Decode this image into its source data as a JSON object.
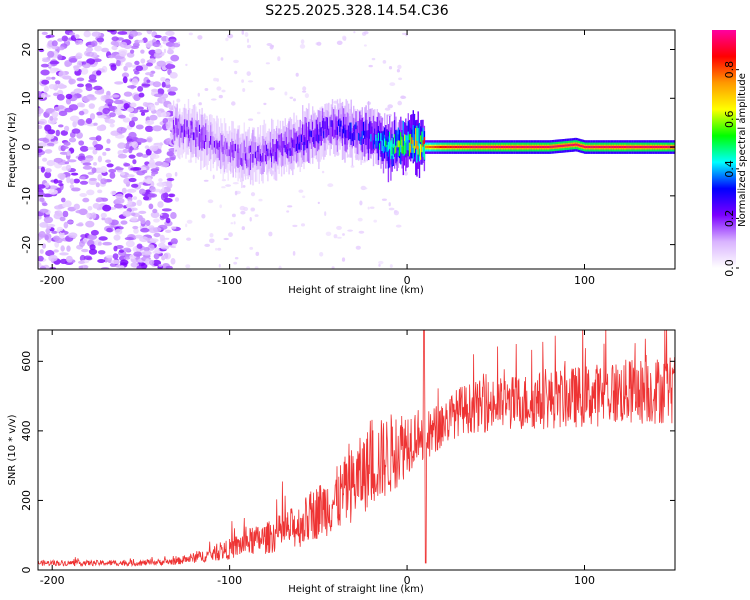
{
  "title": "S225.2025.328.14.54.C36",
  "chart_data": [
    {
      "type": "heatmap",
      "id": "spectrogram",
      "xlabel": "Height of straight line (km)",
      "ylabel": "Frequency (Hz)",
      "xlim": [
        -208,
        151
      ],
      "ylim": [
        -25,
        24
      ],
      "xticks": [
        -200,
        -100,
        0,
        100
      ],
      "yticks": [
        -20,
        -10,
        0,
        10,
        20
      ],
      "colorbar": {
        "label": "Normalized spectral amplitude",
        "range": [
          0,
          1
        ],
        "ticks": [
          "0.0",
          "0.2",
          "0.4",
          "0.6",
          "0.8"
        ],
        "colors": [
          "#ffffff",
          "#d9b3ff",
          "#7b00ff",
          "#0000ff",
          "#00ffff",
          "#00ff00",
          "#ffff00",
          "#ff9900",
          "#ff0000",
          "#ff00a0"
        ]
      },
      "signal_trace": {
        "description_points_x_km": [
          -130,
          -120,
          -110,
          -100,
          -90,
          -80,
          -70,
          -60,
          -50,
          -40,
          -30,
          -20,
          -10,
          0,
          10,
          20,
          40,
          60,
          80,
          95,
          100,
          151
        ],
        "frequency_hz": [
          4,
          3,
          1,
          -1,
          -2,
          -1,
          0,
          1,
          3,
          4,
          3,
          2,
          0,
          1,
          0,
          0,
          0,
          0,
          0,
          0.5,
          0,
          0
        ],
        "peak_amplitude": [
          0.2,
          0.2,
          0.18,
          0.18,
          0.2,
          0.2,
          0.22,
          0.25,
          0.25,
          0.25,
          0.3,
          0.35,
          0.5,
          0.6,
          0.8,
          0.9,
          0.95,
          0.95,
          0.95,
          0.95,
          0.95,
          0.95
        ]
      },
      "noise_region_x_km": [
        -208,
        -140
      ]
    },
    {
      "type": "line",
      "id": "snr",
      "xlabel": "Height of straight line (km)",
      "ylabel": "SNR (10 * v/v)",
      "xlim": [
        -208,
        151
      ],
      "ylim": [
        0,
        690
      ],
      "xticks": [
        -200,
        -100,
        0,
        100
      ],
      "yticks": [
        0,
        200,
        400,
        600
      ],
      "series": [
        {
          "name": "SNR",
          "color": "#ee3333",
          "envelope_x": [
            -208,
            -180,
            -150,
            -130,
            -120,
            -110,
            -100,
            -90,
            -80,
            -70,
            -60,
            -50,
            -40,
            -30,
            -20,
            -10,
            0,
            5,
            8,
            10,
            12,
            15,
            20,
            30,
            40,
            60,
            80,
            100,
            120,
            151
          ],
          "envelope_y": [
            20,
            20,
            20,
            25,
            35,
            45,
            60,
            80,
            90,
            110,
            130,
            170,
            200,
            250,
            300,
            330,
            370,
            390,
            400,
            300,
            380,
            400,
            420,
            460,
            470,
            480,
            490,
            500,
            510,
            520
          ],
          "noise_amplitude": [
            8,
            8,
            8,
            10,
            15,
            20,
            30,
            40,
            45,
            55,
            65,
            80,
            95,
            110,
            120,
            120,
            100,
            80,
            60,
            200,
            80,
            70,
            70,
            70,
            75,
            80,
            85,
            90,
            95,
            100
          ]
        }
      ]
    }
  ]
}
